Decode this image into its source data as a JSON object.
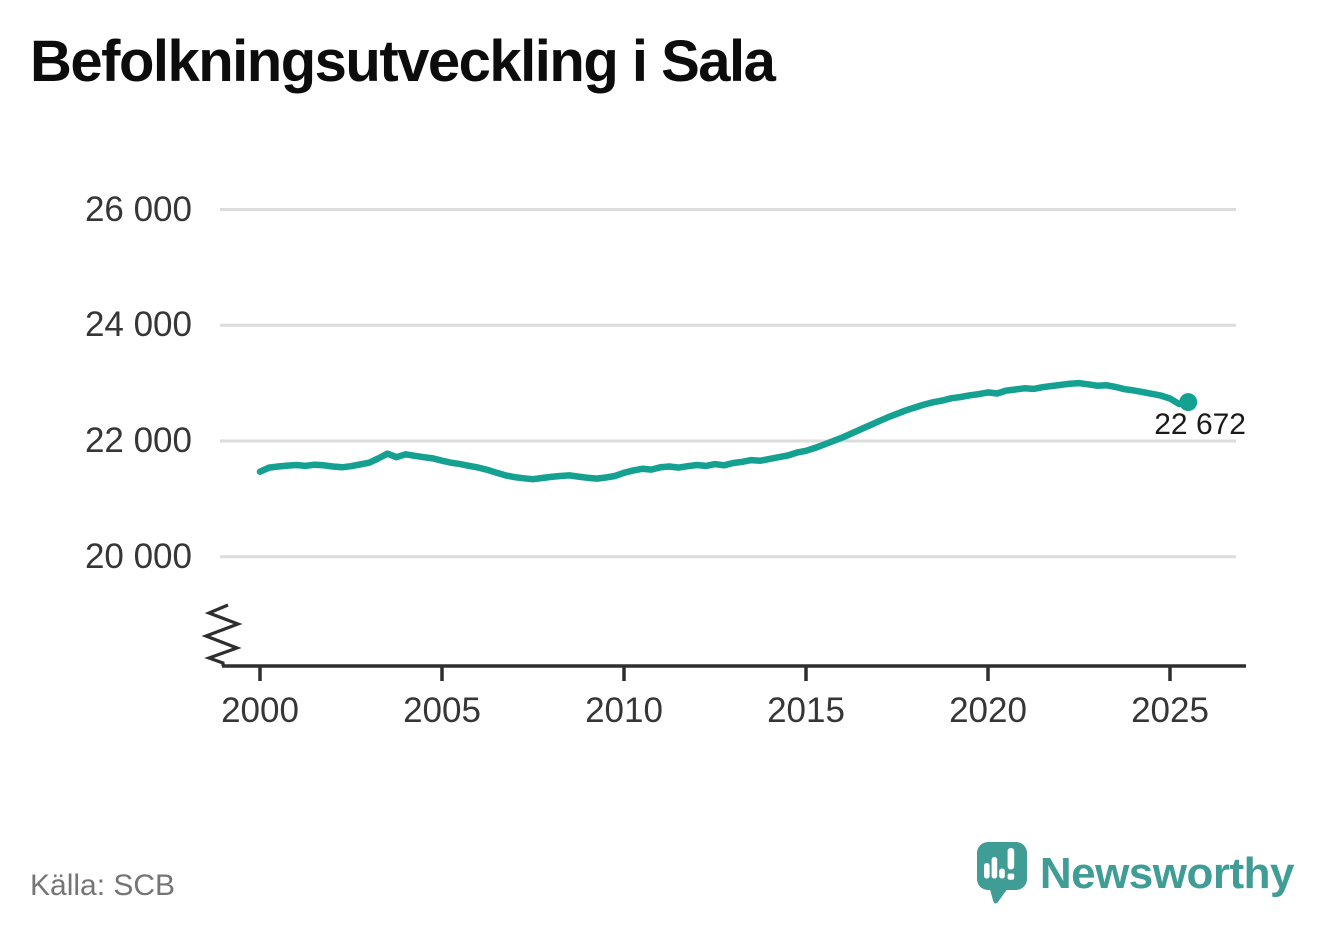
{
  "footer": {
    "source": "Källa: SCB",
    "brand": "Newsworthy"
  },
  "colors": {
    "line": "#14a191",
    "grid": "#dcdcdc",
    "axis": "#2e2e2e",
    "title": "#0c0c0c",
    "tick_label": "#363636",
    "source": "#757575",
    "brand": "#3f9d96",
    "end_label": "#1a1a1a",
    "background": "#ffffff"
  },
  "chart_data": {
    "type": "line",
    "title": "Befolkningsutveckling i Sala",
    "series_name": "Befolkning",
    "source": "SCB",
    "x_start": 2000,
    "x_step_years": 0.25,
    "values": [
      21470,
      21540,
      21560,
      21575,
      21585,
      21570,
      21590,
      21580,
      21560,
      21545,
      21565,
      21595,
      21625,
      21700,
      21780,
      21720,
      21770,
      21745,
      21720,
      21700,
      21660,
      21625,
      21600,
      21570,
      21540,
      21500,
      21450,
      21405,
      21375,
      21355,
      21340,
      21360,
      21380,
      21395,
      21405,
      21385,
      21365,
      21350,
      21370,
      21395,
      21450,
      21490,
      21520,
      21505,
      21545,
      21560,
      21540,
      21565,
      21585,
      21570,
      21600,
      21580,
      21620,
      21640,
      21670,
      21660,
      21690,
      21720,
      21750,
      21800,
      21830,
      21880,
      21940,
      22000,
      22060,
      22130,
      22200,
      22270,
      22340,
      22410,
      22470,
      22530,
      22580,
      22630,
      22670,
      22700,
      22740,
      22760,
      22790,
      22810,
      22840,
      22820,
      22870,
      22890,
      22910,
      22900,
      22930,
      22950,
      22970,
      22990,
      23000,
      22980,
      22955,
      22965,
      22935,
      22895,
      22875,
      22845,
      22815,
      22785,
      22735,
      22640,
      22672
    ],
    "end_value": 22672,
    "end_label": "22 672",
    "yticks": [
      20000,
      22000,
      24000,
      26000
    ],
    "ytick_labels": [
      "20 000",
      "22 000",
      "24 000",
      "26 000"
    ],
    "xticks": [
      2000,
      2005,
      2010,
      2015,
      2020,
      2025
    ],
    "xtick_labels": [
      "2000",
      "2005",
      "2010",
      "2015",
      "2020",
      "2025"
    ],
    "xlabel": "",
    "ylabel": "",
    "grid": "horizontal",
    "axis_break": true,
    "legend": "none"
  }
}
